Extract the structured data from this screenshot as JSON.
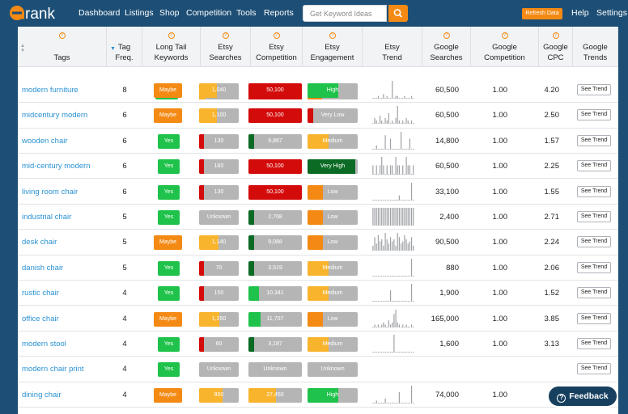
{
  "header": {
    "logo_text": "erank",
    "nav": [
      "Dashboard",
      "Listings",
      "Shop",
      "Competition",
      "Tools",
      "Reports"
    ],
    "search_placeholder": "Get Keyword Ideas",
    "refresh_label": "Refresh Data",
    "right_links": [
      "Help",
      "Settings"
    ]
  },
  "columns": [
    {
      "label": "Tags",
      "info": true
    },
    {
      "label": "Tag Freq.",
      "info": false
    },
    {
      "label": "Long Tail Keywords",
      "info": true
    },
    {
      "label": "Etsy Searches",
      "info": true
    },
    {
      "label": "Etsy Competition",
      "info": true
    },
    {
      "label": "Etsy Engagement",
      "info": true
    },
    {
      "label": "Etsy Trend",
      "info": false
    },
    {
      "label": "Google Searches",
      "info": true
    },
    {
      "label": "Google Competition",
      "info": true
    },
    {
      "label": "Google CPC",
      "info": true
    },
    {
      "label": "Google Trends",
      "info": false
    }
  ],
  "colors": {
    "green": "#1fc24a",
    "dark_green": "#0b6b25",
    "orange": "#f48a14",
    "yellow": "#f9b42e",
    "red": "#d40b0b",
    "gray": "#b5b5b5",
    "link": "#2a92d2"
  },
  "see_trend_label": "See Trend",
  "feedback_label": "Feedback",
  "rows": [
    {
      "tag": "modern furniture",
      "freq": "8",
      "longtail": "Maybe",
      "searches": {
        "label": "1,040",
        "level": 0.45,
        "color": "yellow"
      },
      "competition": {
        "label": "50,100",
        "level": 1.0,
        "color": "red"
      },
      "engagement": {
        "label": "High",
        "level": 0.62,
        "color": "green"
      },
      "trend": [
        0,
        0,
        0,
        1,
        0,
        0,
        2,
        0,
        1,
        0,
        0,
        9,
        0,
        1,
        1,
        0,
        0,
        0,
        1,
        0,
        0,
        0,
        1,
        0
      ],
      "g_searches": "60,500",
      "g_comp": "1.00",
      "cpc": "4.20"
    },
    {
      "tag": "midcentury modern",
      "freq": "6",
      "longtail": "Maybe",
      "searches": {
        "label": "1,100",
        "level": 0.45,
        "color": "yellow"
      },
      "competition": {
        "label": "50,100",
        "level": 1.0,
        "color": "red"
      },
      "engagement": {
        "label": "Very Low",
        "level": 0.12,
        "color": "red"
      },
      "trend": [
        0,
        2,
        1,
        0,
        3,
        1,
        0,
        2,
        1,
        4,
        0,
        1,
        0,
        2,
        7,
        1,
        0,
        1,
        0,
        2,
        1,
        0,
        1,
        0
      ],
      "g_searches": "60,500",
      "g_comp": "1.00",
      "cpc": "2.50"
    },
    {
      "tag": "wooden chair",
      "freq": "6",
      "longtail": "Yes",
      "searches": {
        "label": "130",
        "level": 0.12,
        "color": "red"
      },
      "competition": {
        "label": "9,867",
        "level": 0.1,
        "color": "dark_green"
      },
      "engagement": {
        "label": "Medium",
        "level": 0.42,
        "color": "yellow"
      },
      "trend": [
        0,
        0,
        1,
        0,
        0,
        0,
        0,
        4,
        0,
        0,
        3,
        0,
        0,
        0,
        0,
        0,
        5,
        0,
        0,
        0,
        0,
        3,
        0,
        0
      ],
      "g_searches": "14,800",
      "g_comp": "1.00",
      "cpc": "1.57"
    },
    {
      "tag": "mid-century modern",
      "freq": "6",
      "longtail": "Yes",
      "searches": {
        "label": "180",
        "level": 0.12,
        "color": "red"
      },
      "competition": {
        "label": "50,100",
        "level": 1.0,
        "color": "red"
      },
      "engagement": {
        "label": "Very High",
        "level": 0.95,
        "color": "dark_green"
      },
      "trend": [
        1,
        0,
        1,
        0,
        1,
        2,
        1,
        0,
        1,
        0,
        1,
        1,
        0,
        2,
        1,
        1,
        0,
        1,
        0,
        2,
        1,
        1,
        0,
        1
      ],
      "g_searches": "60,500",
      "g_comp": "1.00",
      "cpc": "2.25"
    },
    {
      "tag": "living room chair",
      "freq": "6",
      "longtail": "Yes",
      "searches": {
        "label": "130",
        "level": 0.12,
        "color": "red"
      },
      "competition": {
        "label": "50,100",
        "level": 1.0,
        "color": "red"
      },
      "engagement": {
        "label": "Low",
        "level": 0.3,
        "color": "orange"
      },
      "trend": [
        0,
        0,
        0,
        0,
        0,
        0,
        0,
        0,
        0,
        0,
        0,
        0,
        0,
        0,
        0,
        2,
        0,
        0,
        0,
        0,
        0,
        0,
        8,
        0
      ],
      "g_searches": "33,100",
      "g_comp": "1.00",
      "cpc": "1.55"
    },
    {
      "tag": "industrial chair",
      "freq": "5",
      "longtail": "Yes",
      "searches": {
        "label": "Unknown",
        "level": 0.0,
        "color": "gray"
      },
      "competition": {
        "label": "2,768",
        "level": 0.1,
        "color": "dark_green"
      },
      "engagement": {
        "label": "Low",
        "level": 0.3,
        "color": "orange"
      },
      "trend": [
        1,
        1,
        1,
        1,
        1,
        1,
        1,
        1,
        1,
        1,
        1,
        1,
        1,
        1,
        1,
        1,
        1,
        1,
        1,
        1,
        1,
        1,
        1,
        1
      ],
      "g_searches": "2,400",
      "g_comp": "1.00",
      "cpc": "2.71"
    },
    {
      "tag": "desk chair",
      "freq": "5",
      "longtail": "Maybe",
      "searches": {
        "label": "1,140",
        "level": 0.48,
        "color": "yellow"
      },
      "competition": {
        "label": "9,088",
        "level": 0.1,
        "color": "dark_green"
      },
      "engagement": {
        "label": "Low",
        "level": 0.3,
        "color": "orange"
      },
      "trend": [
        2,
        6,
        3,
        7,
        4,
        5,
        2,
        8,
        5,
        3,
        6,
        4,
        5,
        2,
        8,
        6,
        3,
        4,
        7,
        5,
        3,
        4,
        6,
        2
      ],
      "g_searches": "90,500",
      "g_comp": "1.00",
      "cpc": "2.24"
    },
    {
      "tag": "danish chair",
      "freq": "5",
      "longtail": "Yes",
      "searches": {
        "label": "70",
        "level": 0.12,
        "color": "red"
      },
      "competition": {
        "label": "3,519",
        "level": 0.1,
        "color": "dark_green"
      },
      "engagement": {
        "label": "Medium",
        "level": 0.42,
        "color": "yellow"
      },
      "trend": [
        0,
        0,
        0,
        0,
        0,
        0,
        0,
        0,
        0,
        0,
        0,
        0,
        0,
        0,
        0,
        0,
        0,
        0,
        0,
        0,
        0,
        0,
        8,
        0
      ],
      "g_searches": "880",
      "g_comp": "1.00",
      "cpc": "2.06"
    },
    {
      "tag": "rustic chair",
      "freq": "4",
      "longtail": "Yes",
      "searches": {
        "label": "150",
        "level": 0.12,
        "color": "red"
      },
      "competition": {
        "label": "10,341",
        "level": 0.2,
        "color": "green"
      },
      "engagement": {
        "label": "Medium",
        "level": 0.42,
        "color": "yellow"
      },
      "trend": [
        0,
        0,
        0,
        0,
        0,
        0,
        0,
        0,
        0,
        0,
        5,
        0,
        0,
        0,
        0,
        0,
        0,
        0,
        0,
        0,
        0,
        0,
        8,
        0
      ],
      "g_searches": "1,900",
      "g_comp": "1.00",
      "cpc": "1.52"
    },
    {
      "tag": "office chair",
      "freq": "4",
      "longtail": "Maybe",
      "searches": {
        "label": "1,250",
        "level": 0.5,
        "color": "yellow"
      },
      "competition": {
        "label": "11,707",
        "level": 0.22,
        "color": "green"
      },
      "engagement": {
        "label": "Low",
        "level": 0.3,
        "color": "orange"
      },
      "trend": [
        0,
        1,
        0,
        1,
        0,
        1,
        2,
        1,
        0,
        3,
        1,
        2,
        6,
        8,
        2,
        1,
        0,
        1,
        0,
        1,
        0,
        0,
        1,
        0
      ],
      "g_searches": "165,000",
      "g_comp": "1.00",
      "cpc": "3.85"
    },
    {
      "tag": "modern stool",
      "freq": "4",
      "longtail": "Yes",
      "searches": {
        "label": "60",
        "level": 0.12,
        "color": "red"
      },
      "competition": {
        "label": "3,187",
        "level": 0.1,
        "color": "dark_green"
      },
      "engagement": {
        "label": "Medium",
        "level": 0.42,
        "color": "yellow"
      },
      "trend": [
        0,
        0,
        0,
        0,
        0,
        0,
        0,
        0,
        0,
        0,
        0,
        0,
        8,
        0,
        0,
        0,
        0,
        0,
        0,
        0,
        0,
        0,
        0,
        0
      ],
      "g_searches": "1,600",
      "g_comp": "1.00",
      "cpc": "3.13"
    },
    {
      "tag": "modern chair print",
      "freq": "4",
      "longtail": "Yes",
      "searches": {
        "label": "Unknown",
        "level": 0.0,
        "color": "gray"
      },
      "competition": {
        "label": "Unknown",
        "level": 0.0,
        "color": "gray"
      },
      "engagement": {
        "label": "Unknown",
        "level": 0.0,
        "color": "gray"
      },
      "trend": [],
      "g_searches": "",
      "g_comp": "",
      "cpc": ""
    },
    {
      "tag": "dining chair",
      "freq": "4",
      "longtail": "Maybe",
      "searches": {
        "label": "800",
        "level": 0.6,
        "color": "yellow"
      },
      "competition": {
        "label": "27,450",
        "level": 0.52,
        "color": "yellow"
      },
      "engagement": {
        "label": "High",
        "level": 0.62,
        "color": "green"
      },
      "trend": [
        0,
        0,
        1,
        0,
        0,
        0,
        0,
        2,
        0,
        0,
        0,
        0,
        0,
        0,
        0,
        5,
        0,
        0,
        0,
        0,
        0,
        0,
        8,
        0
      ],
      "g_searches": "74,000",
      "g_comp": "1.00",
      "cpc": ""
    }
  ]
}
